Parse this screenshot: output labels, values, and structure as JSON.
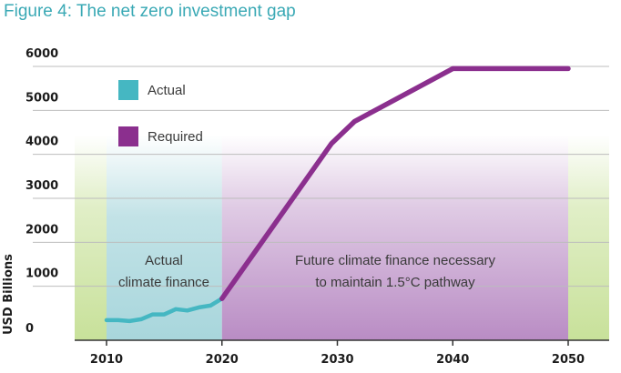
{
  "title": "Figure 4: The net zero investment gap",
  "colors": {
    "actual": "#45b7c2",
    "required": "#8b2f8e",
    "green_band": "#c8e19a",
    "actual_band": "#a8d6dc",
    "required_band": "#b98cc4",
    "grid": "#bdbdbd",
    "title": "#3aa9b5"
  },
  "annotations": {
    "actual_line1": "Actual",
    "actual_line2": "climate finance",
    "future_line1": "Future climate finance necessary",
    "future_line2": "to maintain 1.5°C pathway"
  },
  "chart_data": {
    "type": "line",
    "title": "Figure 4: The net zero investment gap",
    "xlabel": "",
    "ylabel": "USD Billions",
    "xlim": [
      2007,
      2054
    ],
    "ylim": [
      0,
      6000
    ],
    "x_ticks": [
      2010,
      2020,
      2030,
      2040,
      2050
    ],
    "y_ticks": [
      0,
      1000,
      2000,
      3000,
      4000,
      5000,
      6000
    ],
    "grid": "horizontal",
    "legend_position": "top-left",
    "series": [
      {
        "name": "Actual",
        "color": "#45b7c2",
        "x": [
          2010,
          2011,
          2012,
          2013,
          2014,
          2015,
          2016,
          2017,
          2018,
          2019,
          2020
        ],
        "y": [
          230,
          230,
          210,
          250,
          360,
          360,
          480,
          450,
          520,
          560,
          720
        ]
      },
      {
        "name": "Required",
        "color": "#8b2f8e",
        "x": [
          2020,
          2021.3,
          2029.5,
          2031.5,
          2040,
          2050
        ],
        "y": [
          720,
          1200,
          4250,
          4750,
          5950,
          5950
        ]
      }
    ],
    "shaded_regions": [
      {
        "label": "Actual climate finance",
        "x": [
          2010,
          2020
        ]
      },
      {
        "label": "Future climate finance necessary to maintain 1.5°C pathway",
        "x": [
          2020,
          2050
        ]
      }
    ]
  }
}
